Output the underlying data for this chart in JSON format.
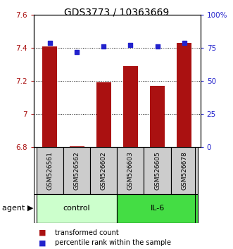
{
  "title": "GDS3773 / 10363669",
  "samples": [
    "GSM526561",
    "GSM526562",
    "GSM526602",
    "GSM526603",
    "GSM526605",
    "GSM526678"
  ],
  "bar_values": [
    7.41,
    6.805,
    7.19,
    7.29,
    7.17,
    7.43
  ],
  "percentile_values": [
    79,
    72,
    76,
    77,
    76,
    79
  ],
  "bar_color": "#aa1111",
  "dot_color": "#2222cc",
  "ylim_left": [
    6.8,
    7.6
  ],
  "ylim_right": [
    0,
    100
  ],
  "yticks_left": [
    6.8,
    7.0,
    7.2,
    7.4,
    7.6
  ],
  "ytick_labels_left": [
    "6.8",
    "7",
    "7.2",
    "7.4",
    "7.6"
  ],
  "yticks_right": [
    0,
    25,
    50,
    75,
    100
  ],
  "ytick_labels_right": [
    "0",
    "25",
    "50",
    "75",
    "100%"
  ],
  "groups": [
    {
      "label": "control",
      "indices": [
        0,
        1,
        2
      ],
      "color": "#ccffcc"
    },
    {
      "label": "IL-6",
      "indices": [
        3,
        4,
        5
      ],
      "color": "#44dd44"
    }
  ],
  "agent_label": "agent",
  "legend_bar_label": "transformed count",
  "legend_dot_label": "percentile rank within the sample",
  "title_fontsize": 10,
  "tick_fontsize": 7.5,
  "sample_fontsize": 6.5,
  "group_fontsize": 8,
  "legend_fontsize": 7,
  "bar_width": 0.55
}
